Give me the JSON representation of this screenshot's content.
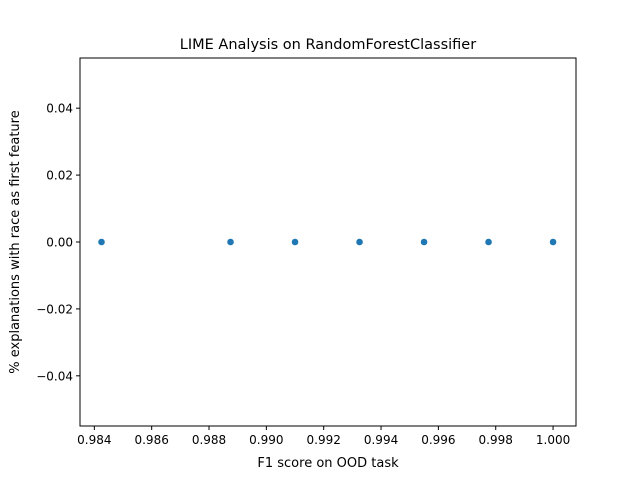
{
  "chart_data": {
    "type": "scatter",
    "title": "LIME Analysis on RandomForestClassifier",
    "xlabel": "F1 score on OOD task",
    "ylabel": "% explanations with race as first feature",
    "xlim": [
      0.9835,
      1.0008
    ],
    "ylim": [
      -0.055,
      0.055
    ],
    "xticks": [
      0.984,
      0.986,
      0.988,
      0.99,
      0.992,
      0.994,
      0.996,
      0.998,
      1.0
    ],
    "xtick_labels": [
      "0.984",
      "0.986",
      "0.988",
      "0.990",
      "0.992",
      "0.994",
      "0.996",
      "0.998",
      "1.000"
    ],
    "yticks": [
      -0.04,
      -0.02,
      0.0,
      0.02,
      0.04
    ],
    "ytick_labels": [
      "−0.04",
      "−0.02",
      "0.00",
      "0.02",
      "0.04"
    ],
    "grid": false,
    "legend": "none",
    "marker_color": "#1f77b4",
    "points": [
      {
        "x": 0.98425,
        "y": 0.0
      },
      {
        "x": 0.98875,
        "y": 0.0
      },
      {
        "x": 0.991,
        "y": 0.0
      },
      {
        "x": 0.99325,
        "y": 0.0
      },
      {
        "x": 0.9955,
        "y": 0.0
      },
      {
        "x": 0.99775,
        "y": 0.0
      },
      {
        "x": 1.0,
        "y": 0.0
      }
    ]
  }
}
